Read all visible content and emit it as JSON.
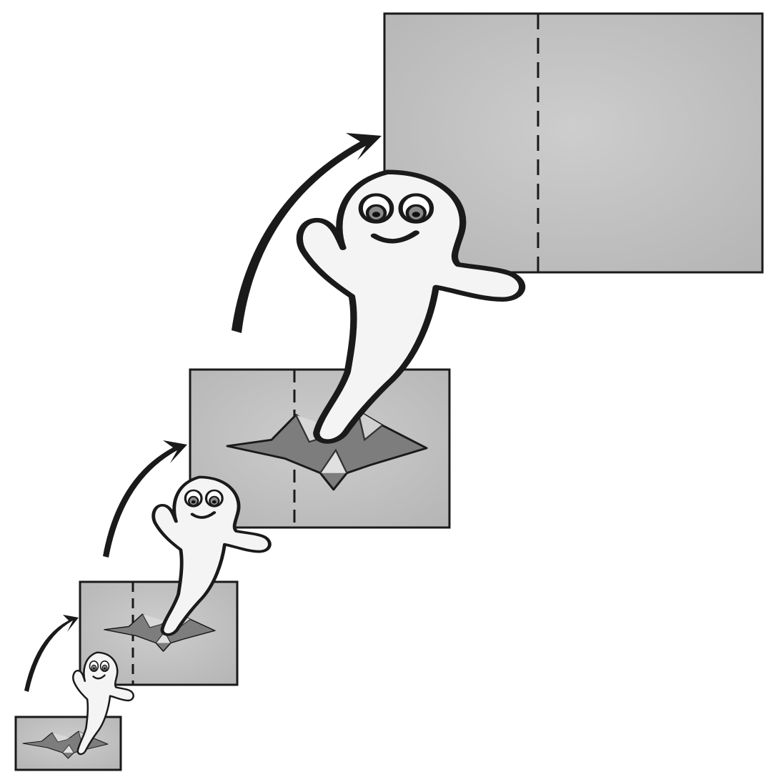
{
  "illustration": {
    "panel_count": 4,
    "arrow_count": 3,
    "ghost_count": 4,
    "colors": {
      "background": "#ffffff",
      "paper": "#bdbdbd",
      "paper_light": "#cdcdcd",
      "tear": "#8a8a8a",
      "ink": "#1a1a1a",
      "ghost": "#f4f4f4"
    }
  }
}
